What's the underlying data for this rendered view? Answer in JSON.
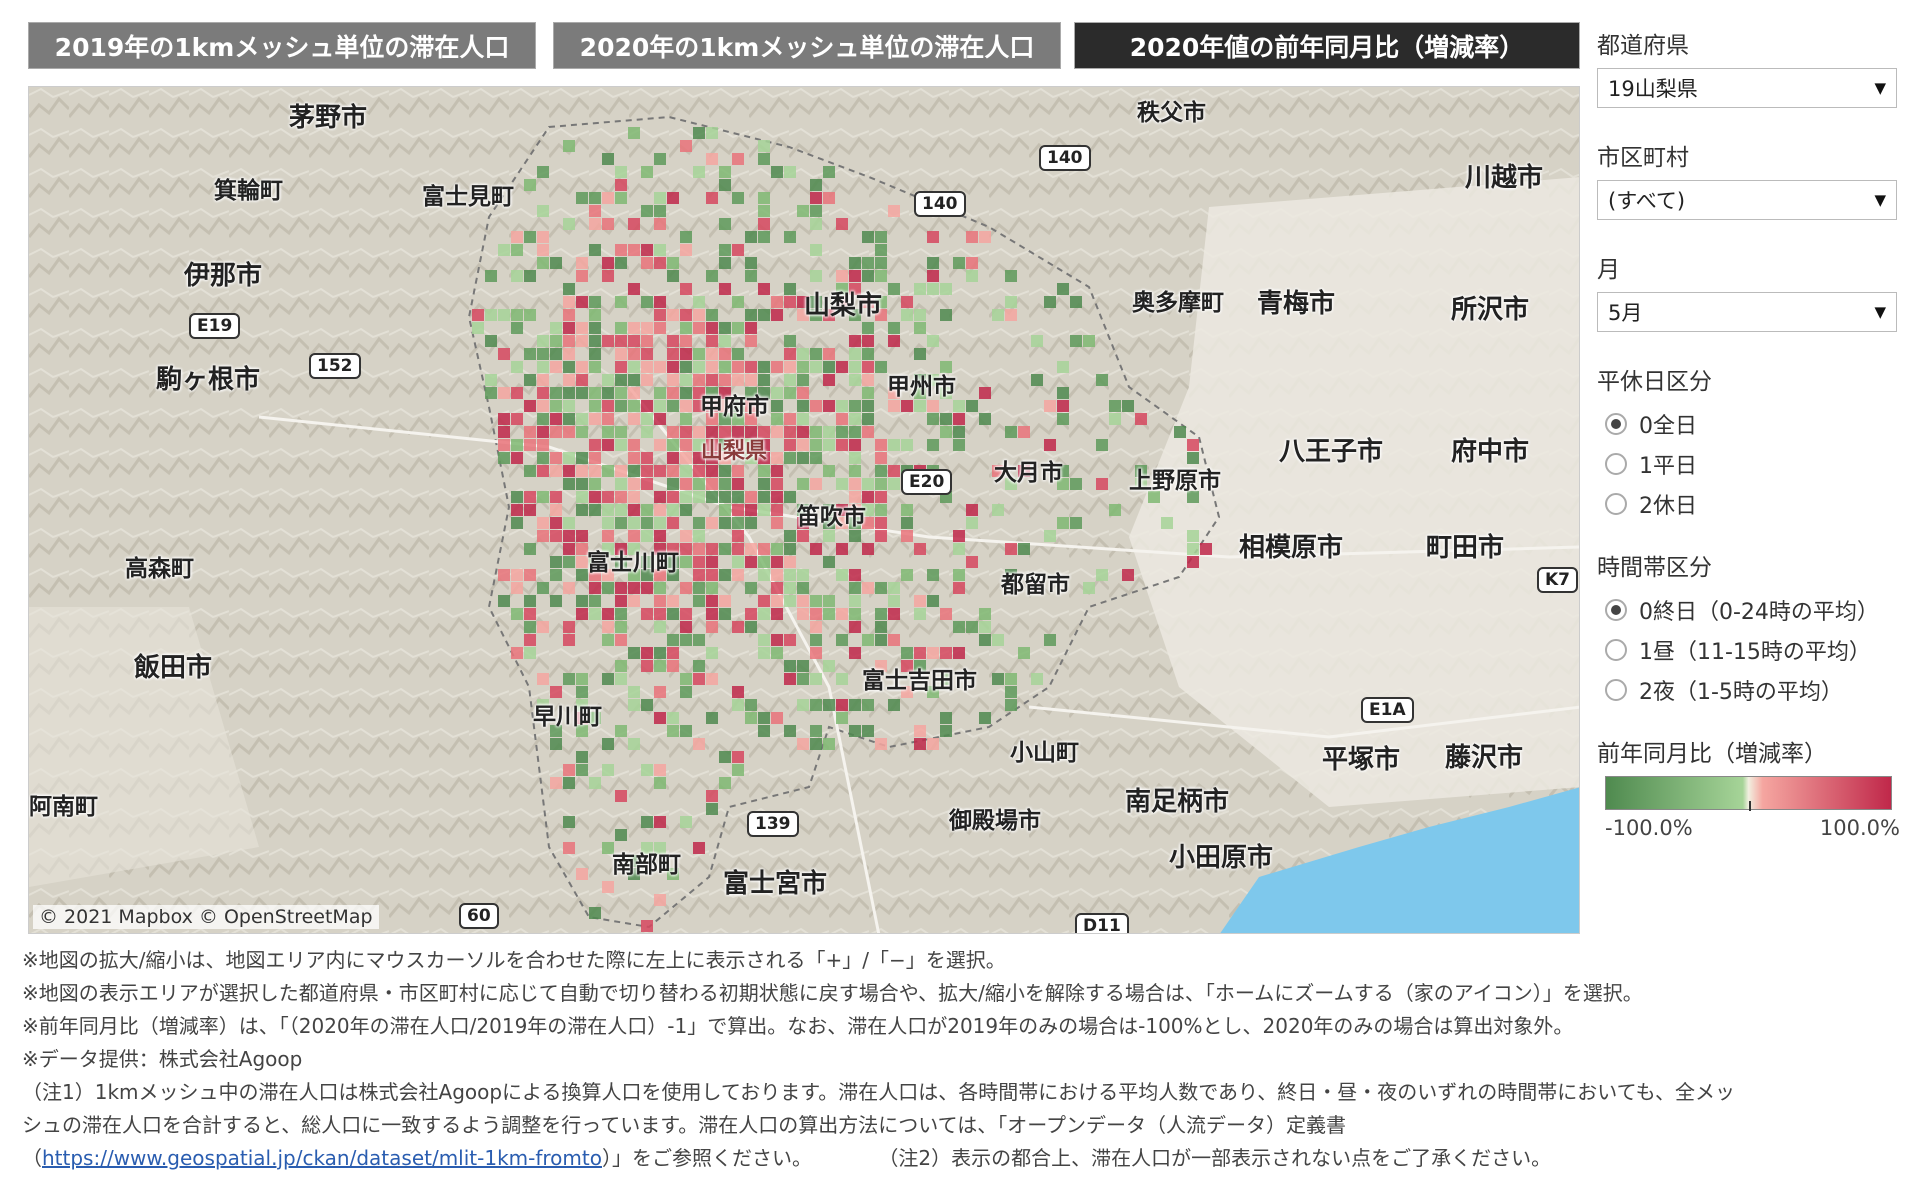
{
  "tabs": [
    {
      "label": "2019年の1kmメッシュ単位の滞在人口",
      "active": false
    },
    {
      "label": "2020年の1kmメッシュ単位の滞在人口",
      "active": false
    },
    {
      "label": "2020年値の前年同月比（増減率）",
      "active": true
    }
  ],
  "map": {
    "attribution": "© 2021 Mapbox  © OpenStreetMap",
    "places": [
      "茅野市",
      "秩父市",
      "富士見町",
      "箕輪町",
      "伊那市",
      "山梨市",
      "奥多摩町",
      "青梅市",
      "所沢市",
      "川越市",
      "駒ヶ根市",
      "甲府市",
      "甲州市",
      "山梨県",
      "大月市",
      "上野原市",
      "八王子市",
      "府中市",
      "笛吹市",
      "富士川町",
      "相模原市",
      "町田市",
      "高森町",
      "都留市",
      "飯田市",
      "富士吉田市",
      "早川町",
      "小山町",
      "平塚市",
      "藤沢市",
      "阿南町",
      "南足柄市",
      "御殿場市",
      "南部町",
      "富士宮市",
      "小田原市"
    ],
    "shields": [
      "140",
      "140",
      "E19",
      "152",
      "E20",
      "K7",
      "E1A",
      "139",
      "60",
      "D11"
    ],
    "colors": {
      "decrease": "#4f8a4f",
      "increase": "#c0284a",
      "sea": "#7ec8ec"
    }
  },
  "filters": {
    "prefecture": {
      "label": "都道府県",
      "value": "19山梨県"
    },
    "municipality": {
      "label": "市区町村",
      "value": "(すべて)"
    },
    "month": {
      "label": "月",
      "value": "5月"
    },
    "daytype": {
      "label": "平休日区分",
      "options": [
        "0全日",
        "1平日",
        "2休日"
      ],
      "selected": 0
    },
    "timeband": {
      "label": "時間帯区分",
      "options": [
        "0終日（0-24時の平均）",
        "1昼（11-15時の平均）",
        "2夜（1-5時の平均）"
      ],
      "selected": 0
    }
  },
  "legend": {
    "title": "前年同月比（増減率）",
    "min": "-100.0%",
    "max": "100.0%"
  },
  "notes": [
    "※地図の拡大/縮小は、地図エリア内にマウスカーソルを合わせた際に左上に表示される「+」/「−」を選択。",
    "※地図の表示エリアが選択した都道府県・市区町村に応じて自動で切り替わる初期状態に戻す場合や、拡大/縮小を解除する場合は、「ホームにズームする（家のアイコン）」を選択。",
    "※前年同月比（増減率）は、「（2020年の滞在人口/2019年の滞在人口）-1」で算出。なお、滞在人口が2019年のみの場合は-100%とし、2020年のみの場合は算出対象外。",
    "※データ提供：株式会社Agoop",
    "（注1）1kmメッシュ中の滞在人口は株式会社Agoopによる換算人口を使用しております。滞在人口は、各時間帯における平均人数であり、終日・昼・夜のいずれの時間帯においても、全メッ",
    "シュの滞在人口を合計すると、総人口に一致するよう調整を行っています。滞在人口の算出方法については、「オープンデータ（人流データ）定義書"
  ],
  "note_link": {
    "prefix": "（",
    "url": "https://www.geospatial.jp/ckan/dataset/mlit-1km-fromto",
    "suffix": "）」をご参照ください。",
    "note2": "（注2）表示の都合上、滞在人口が一部表示されない点をご了承ください。"
  }
}
